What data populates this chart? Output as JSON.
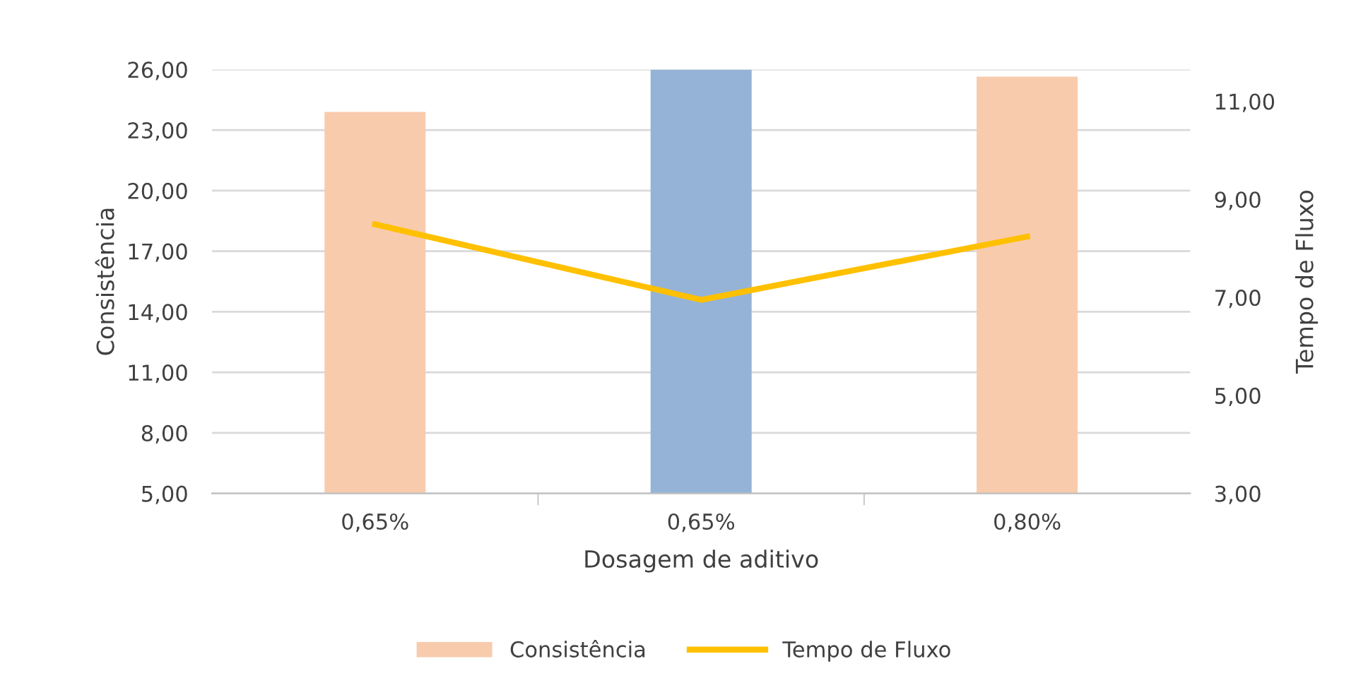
{
  "chart_data": {
    "type": "bar",
    "xlabel": "Dosagem de aditivo",
    "ylabel": "Consistência",
    "y2label": "Tempo de Fluxo",
    "categories": [
      "0,65%",
      "0,65%",
      "0,80%"
    ],
    "series": [
      {
        "name": "Consistência",
        "color": "#f8cbad",
        "colors": [
          "#f8cbad",
          "#95b3d7",
          "#f8cbad"
        ],
        "values": [
          23.9,
          26.0,
          25.65
        ]
      },
      {
        "name": "Tempo de Fluxo",
        "type": "line",
        "axis": "y2",
        "color": "#ffc000",
        "values": [
          8.49,
          6.95,
          8.24
        ]
      }
    ],
    "ylim": [
      5,
      26
    ],
    "yticks": [
      {
        "value": 5,
        "label": "5,00"
      },
      {
        "value": 8,
        "label": "8,00"
      },
      {
        "value": 11,
        "label": "11,00"
      },
      {
        "value": 14,
        "label": "14,00"
      },
      {
        "value": 17,
        "label": "17,00"
      },
      {
        "value": 20,
        "label": "20,00"
      },
      {
        "value": 23,
        "label": "23,00"
      },
      {
        "value": 26,
        "label": "26,00"
      }
    ],
    "y2lim": [
      3,
      11.65
    ],
    "y2ticks": [
      {
        "value": 3,
        "label": "3,00"
      },
      {
        "value": 5,
        "label": "5,00"
      },
      {
        "value": 7,
        "label": "7,00"
      },
      {
        "value": 9,
        "label": "9,00"
      },
      {
        "value": 11,
        "label": "11,00"
      }
    ],
    "grid": "y",
    "legend": "bottom",
    "marker": "none",
    "line_style": "solid"
  }
}
